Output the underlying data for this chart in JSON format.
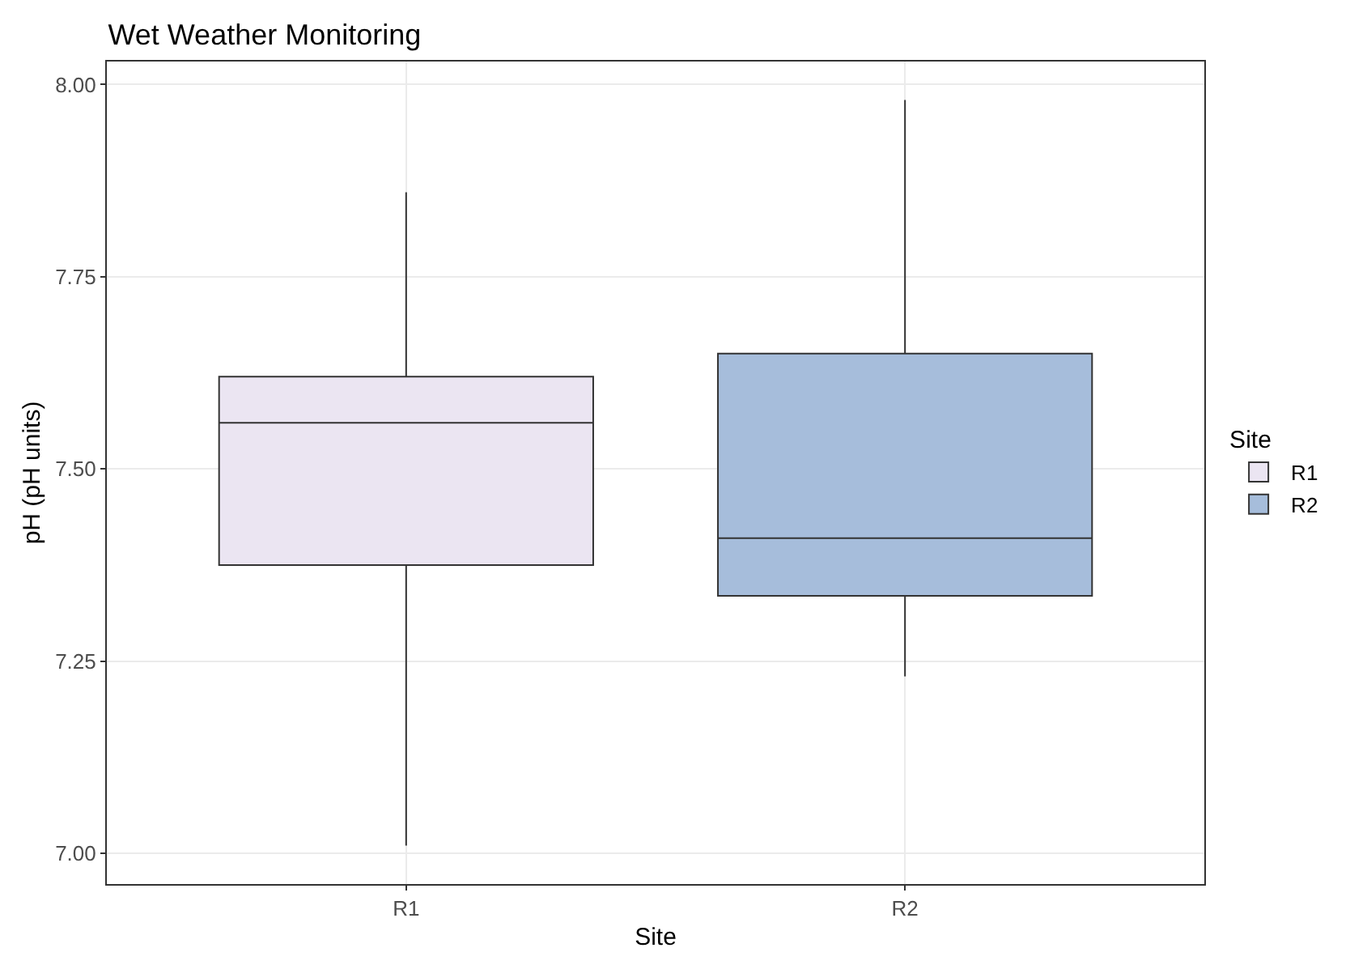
{
  "chart_data": {
    "type": "box",
    "title": "Wet Weather Monitoring",
    "xlabel": "Site",
    "ylabel": "pH (pH units)",
    "legend_title": "Site",
    "categories": [
      "R1",
      "R2"
    ],
    "series": [
      {
        "name": "R1",
        "color": "#ebe5f2",
        "boxes": [
          {
            "low": 7.01,
            "q1": 7.375,
            "median": 7.56,
            "q3": 7.62,
            "high": 7.86
          },
          null
        ]
      },
      {
        "name": "R2",
        "color": "#a6bddb",
        "boxes": [
          null,
          {
            "low": 7.23,
            "q1": 7.335,
            "median": 7.41,
            "q3": 7.65,
            "high": 7.98
          }
        ]
      }
    ],
    "ylim": [
      6.96,
      8.03
    ],
    "yticks": [
      {
        "value": 7.0,
        "label": "7.00"
      },
      {
        "value": 7.25,
        "label": "7.25"
      },
      {
        "value": 7.5,
        "label": "7.50"
      },
      {
        "value": 7.75,
        "label": "7.75"
      },
      {
        "value": 8.0,
        "label": "8.00"
      }
    ],
    "grid": true,
    "legend": "right"
  }
}
